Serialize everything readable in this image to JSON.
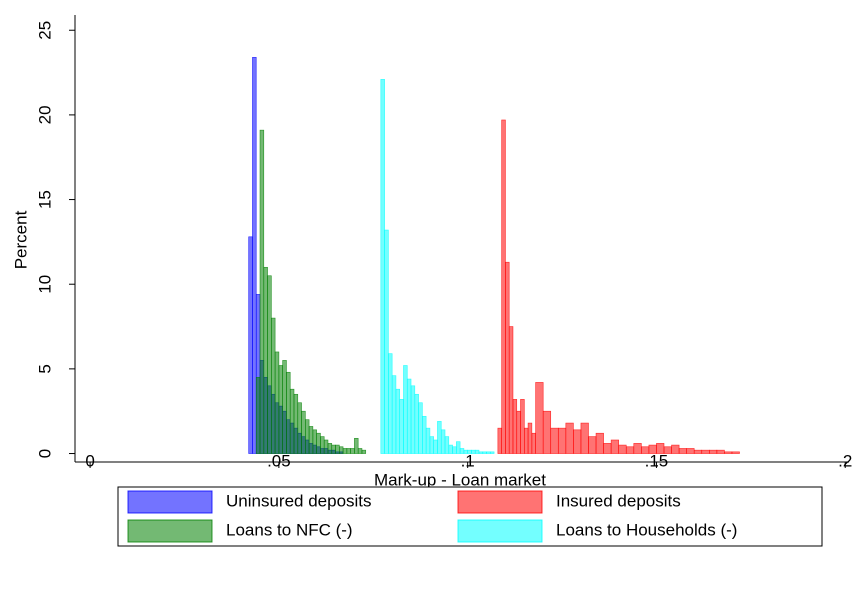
{
  "chart_data": {
    "type": "histogram",
    "x_label": "Mark-up - Loan market",
    "y_label": "Percent",
    "xlim": [
      -0.004,
      0.201
    ],
    "ylim": [
      -0.5,
      25.9
    ],
    "xticks": [
      0,
      {
        "value": 0.05,
        "label": ".05"
      },
      {
        "value": 0.1,
        "label": ".1"
      },
      {
        "value": 0.15,
        "label": ".15"
      },
      {
        "value": 0.2,
        "label": ".2"
      }
    ],
    "yticks": [
      0,
      5,
      10,
      15,
      20,
      25
    ],
    "grid": false,
    "legend": "bottom",
    "series": [
      {
        "name": "Uninsured deposits",
        "color": "#0000ff",
        "bins": [
          0.042,
          0.043,
          0.044,
          0.045,
          0.046,
          0.047,
          0.048,
          0.049,
          0.05,
          0.051,
          0.052,
          0.053,
          0.054,
          0.055,
          0.056,
          0.057,
          0.058,
          0.059,
          0.06,
          0.061,
          0.062,
          0.063,
          0.064,
          0.065,
          0.066,
          0.067
        ],
        "values": [
          12.8,
          23.4,
          9.4,
          5.5,
          4.5,
          4,
          3.5,
          3,
          2.8,
          2.5,
          2,
          1.8,
          1.5,
          1.2,
          1,
          0.8,
          0.6,
          0.5,
          0.4,
          0.3,
          0.3,
          0.2,
          0.2,
          0.1,
          0.1
        ]
      },
      {
        "name": "Insured deposits",
        "color": "#ff0000",
        "bins": [
          0.108,
          0.109,
          0.11,
          0.111,
          0.112,
          0.113,
          0.114,
          0.115,
          0.116,
          0.117,
          0.118,
          0.12,
          0.122,
          0.124,
          0.126,
          0.128,
          0.13,
          0.132,
          0.134,
          0.136,
          0.138,
          0.14,
          0.142,
          0.144,
          0.146,
          0.148,
          0.15,
          0.152,
          0.154,
          0.156,
          0.158,
          0.16,
          0.162,
          0.164,
          0.166,
          0.168,
          0.17,
          0.172
        ],
        "values": [
          1.5,
          19.7,
          11.3,
          7.5,
          3.2,
          2.5,
          3.2,
          1.5,
          1.8,
          1.2,
          4.2,
          2.5,
          1.5,
          1.5,
          1.8,
          1.4,
          1.8,
          1.0,
          1.2,
          0.6,
          0.8,
          0.5,
          0.4,
          0.6,
          0.4,
          0.5,
          0.6,
          0.4,
          0.5,
          0.3,
          0.3,
          0.2,
          0.2,
          0.2,
          0.2,
          0.1,
          0.1
        ]
      },
      {
        "name": "Loans to NFC (-)",
        "color": "#008000",
        "bins": [
          0.044,
          0.045,
          0.046,
          0.047,
          0.048,
          0.049,
          0.05,
          0.051,
          0.052,
          0.053,
          0.054,
          0.055,
          0.056,
          0.057,
          0.058,
          0.059,
          0.06,
          0.061,
          0.062,
          0.063,
          0.064,
          0.065,
          0.066,
          0.067,
          0.068,
          0.069,
          0.07,
          0.071,
          0.072,
          0.073
        ],
        "values": [
          4.5,
          19.1,
          11,
          10.5,
          8,
          6,
          5.2,
          5.5,
          4.8,
          3.8,
          3.5,
          3,
          2.5,
          2,
          1.6,
          1.4,
          1.2,
          1,
          0.8,
          0.6,
          0.5,
          0.5,
          0.4,
          0.3,
          0.3,
          0.3,
          0.9,
          0.3,
          0.2
        ]
      },
      {
        "name": "Loans to Households (-)",
        "color": "#00ffff",
        "bins": [
          0.077,
          0.078,
          0.079,
          0.08,
          0.081,
          0.082,
          0.083,
          0.084,
          0.085,
          0.086,
          0.087,
          0.088,
          0.089,
          0.09,
          0.091,
          0.092,
          0.093,
          0.094,
          0.095,
          0.096,
          0.097,
          0.098,
          0.099,
          0.1,
          0.101,
          0.102,
          0.103,
          0.104,
          0.105,
          0.106,
          0.107
        ],
        "values": [
          22.1,
          13.2,
          5.9,
          4.6,
          3.8,
          3.2,
          5.2,
          4.4,
          4.0,
          3.5,
          3.0,
          2.2,
          1.5,
          1.0,
          0.8,
          1.9,
          1.4,
          1.0,
          0.5,
          0.4,
          0.7,
          0.3,
          0.2,
          0.2,
          0.2,
          0.2,
          0.1,
          0.1,
          0.1,
          0.1
        ]
      }
    ]
  }
}
